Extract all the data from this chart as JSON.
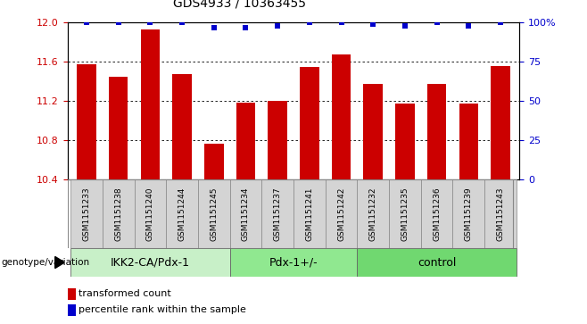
{
  "title": "GDS4933 / 10363455",
  "samples": [
    "GSM1151233",
    "GSM1151238",
    "GSM1151240",
    "GSM1151244",
    "GSM1151245",
    "GSM1151234",
    "GSM1151237",
    "GSM1151241",
    "GSM1151242",
    "GSM1151232",
    "GSM1151235",
    "GSM1151236",
    "GSM1151239",
    "GSM1151243"
  ],
  "red_values": [
    11.58,
    11.45,
    11.93,
    11.48,
    10.77,
    11.19,
    11.2,
    11.55,
    11.68,
    11.38,
    11.18,
    11.38,
    11.18,
    11.56
  ],
  "blue_values": [
    100,
    100,
    100,
    100,
    97,
    97,
    98,
    100,
    100,
    99,
    98,
    100,
    98,
    100
  ],
  "groups": [
    {
      "label": "IKK2-CA/Pdx-1",
      "start": 0,
      "end": 5,
      "color": "#c8f0c8"
    },
    {
      "label": "Pdx-1+/-",
      "start": 5,
      "end": 9,
      "color": "#90e890"
    },
    {
      "label": "control",
      "start": 9,
      "end": 14,
      "color": "#70d870"
    }
  ],
  "ylim_left": [
    10.4,
    12.0
  ],
  "ylim_right": [
    0,
    100
  ],
  "yticks_left": [
    10.4,
    10.8,
    11.2,
    11.6,
    12.0
  ],
  "yticks_right": [
    0,
    25,
    50,
    75,
    100
  ],
  "ytick_labels_right": [
    "0",
    "25",
    "50",
    "75",
    "100%"
  ],
  "bar_color": "#cc0000",
  "dot_color": "#0000cc",
  "grid_color": "#000000",
  "label_color_left": "#cc0000",
  "label_color_right": "#0000cc",
  "xlabel_group": "genotype/variation",
  "legend_red": "transformed count",
  "legend_blue": "percentile rank within the sample",
  "sample_box_color": "#d4d4d4",
  "title_fontsize": 10,
  "tick_fontsize": 8,
  "sample_fontsize": 6.5,
  "group_fontsize": 9
}
